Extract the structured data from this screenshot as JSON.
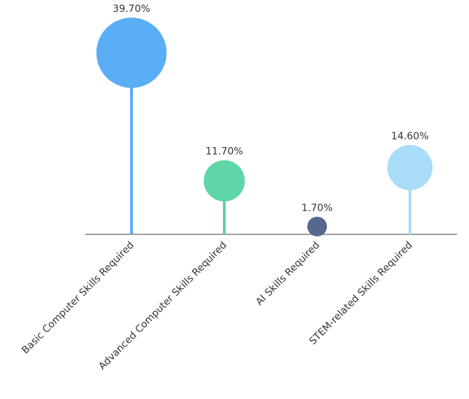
{
  "chart_data": {
    "type": "lollipop",
    "categories": [
      "Basic Computer Skills Required",
      "Advanced Computer Skills Required",
      "AI Skills Required",
      "STEM-related Skills Required"
    ],
    "values": [
      39.7,
      11.7,
      1.7,
      14.6
    ],
    "value_labels": [
      "39.70%",
      "11.70%",
      "1.70%",
      "14.60%"
    ],
    "colors": [
      "#5aaef5",
      "#5ed6a8",
      "#56688f",
      "#a8dcf7"
    ]
  }
}
